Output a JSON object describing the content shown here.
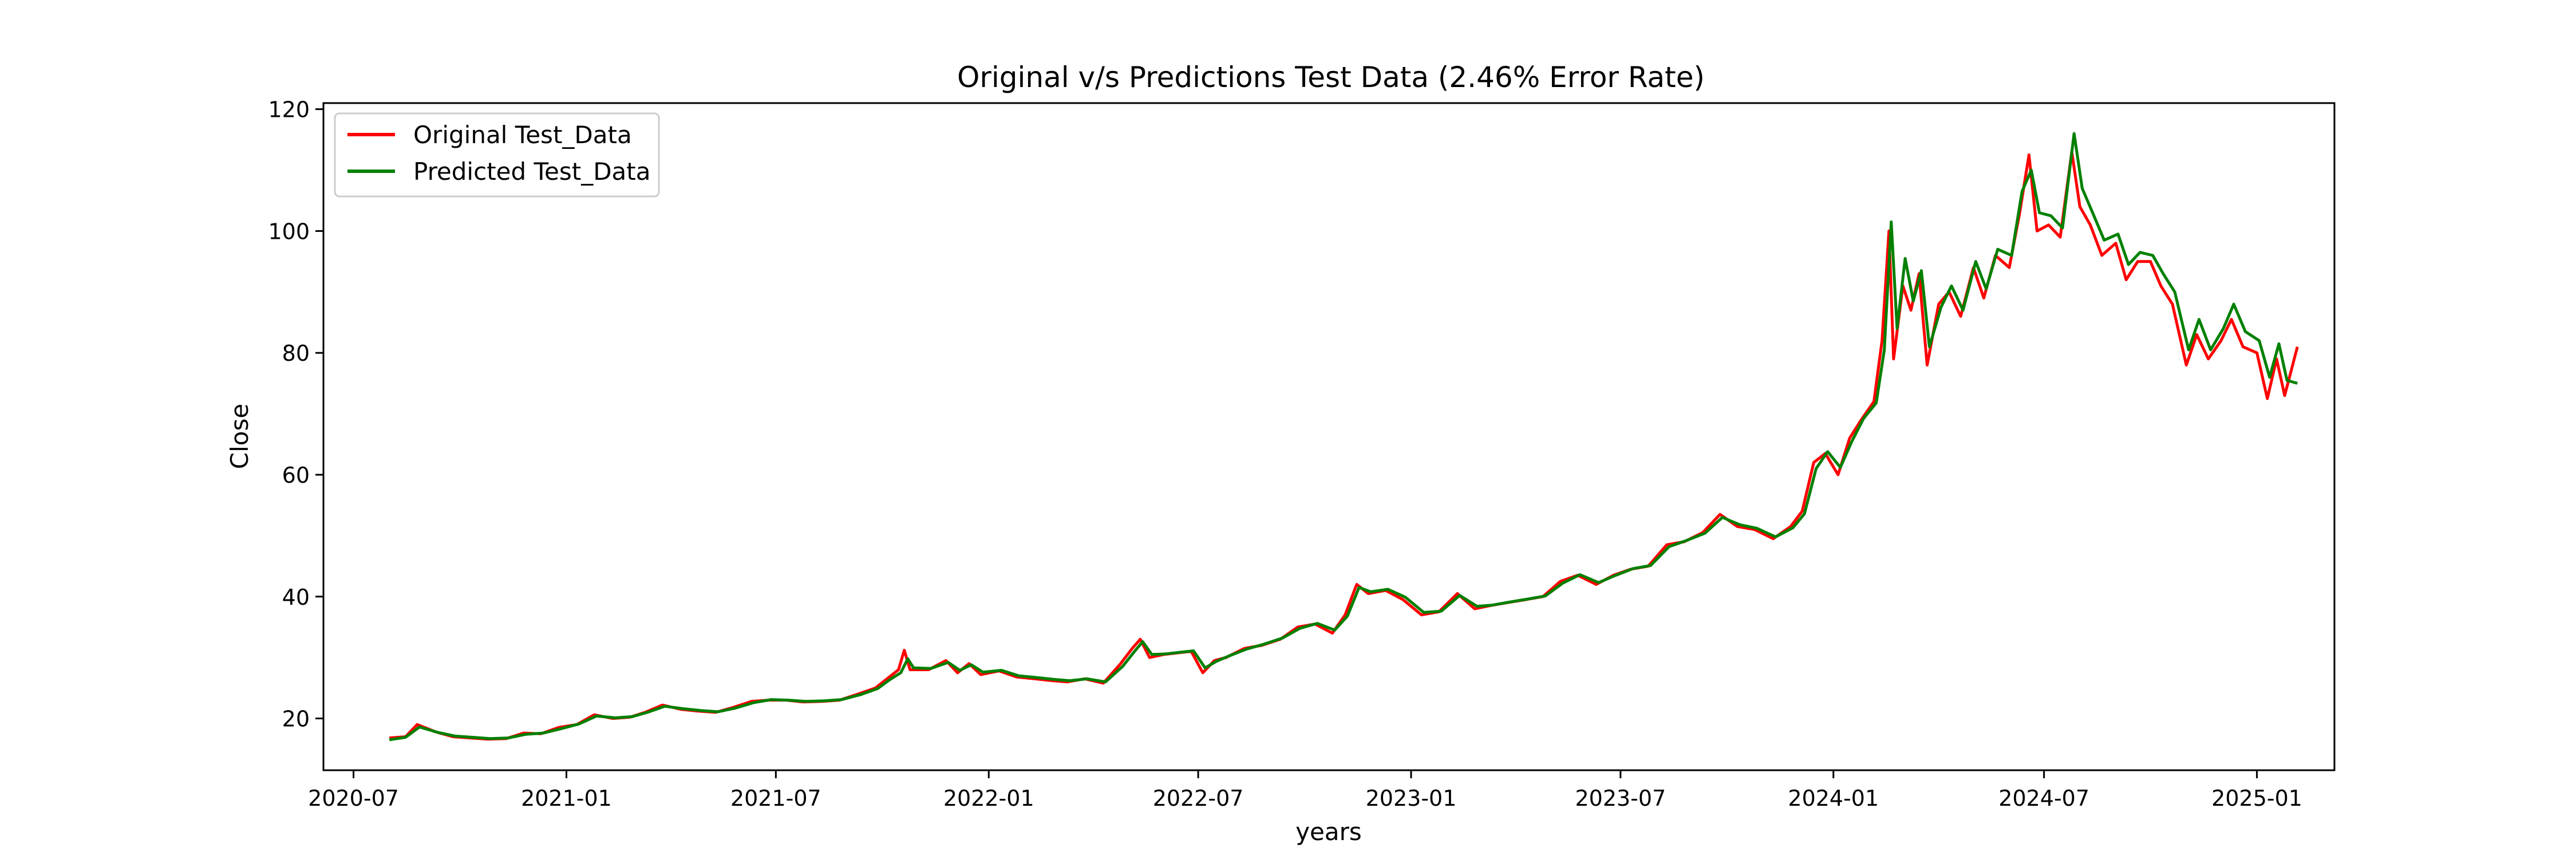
{
  "chart_data": {
    "type": "line",
    "title": "Original v/s Predictions Test Data (2.46% Error Rate)",
    "xlabel": "years",
    "ylabel": "Close",
    "xlim": [
      "2020-06-05",
      "2025-03-09"
    ],
    "ylim": [
      11.5,
      121
    ],
    "x_ticks": [
      "2020-07",
      "2021-01",
      "2021-07",
      "2022-01",
      "2022-07",
      "2023-01",
      "2023-07",
      "2024-01",
      "2024-07",
      "2025-01"
    ],
    "y_ticks": [
      20,
      40,
      60,
      80,
      100,
      120
    ],
    "grid": false,
    "legend_position": "upper-left",
    "series": [
      {
        "name": "Original Test_Data",
        "color": "#ff0000",
        "points": [
          [
            "2020-08-01",
            16.8
          ],
          [
            "2020-08-15",
            17.0
          ],
          [
            "2020-08-25",
            19.0
          ],
          [
            "2020-09-10",
            17.8
          ],
          [
            "2020-09-25",
            17.0
          ],
          [
            "2020-10-10",
            16.8
          ],
          [
            "2020-10-25",
            16.6
          ],
          [
            "2020-11-10",
            16.7
          ],
          [
            "2020-11-25",
            17.6
          ],
          [
            "2020-12-10",
            17.5
          ],
          [
            "2020-12-25",
            18.5
          ],
          [
            "2021-01-10",
            19.0
          ],
          [
            "2021-01-25",
            20.6
          ],
          [
            "2021-02-10",
            20.0
          ],
          [
            "2021-02-25",
            20.2
          ],
          [
            "2021-03-10",
            21.0
          ],
          [
            "2021-03-25",
            22.2
          ],
          [
            "2021-04-10",
            21.5
          ],
          [
            "2021-04-25",
            21.2
          ],
          [
            "2021-05-10",
            21.0
          ],
          [
            "2021-05-25",
            21.8
          ],
          [
            "2021-06-10",
            22.8
          ],
          [
            "2021-06-25",
            23.0
          ],
          [
            "2021-07-10",
            23.0
          ],
          [
            "2021-07-25",
            22.7
          ],
          [
            "2021-08-10",
            22.8
          ],
          [
            "2021-08-25",
            23.0
          ],
          [
            "2021-09-10",
            24.0
          ],
          [
            "2021-09-25",
            25.0
          ],
          [
            "2021-10-05",
            26.5
          ],
          [
            "2021-10-15",
            28.0
          ],
          [
            "2021-10-20",
            31.2
          ],
          [
            "2021-10-25",
            28.0
          ],
          [
            "2021-11-10",
            28.0
          ],
          [
            "2021-11-25",
            29.5
          ],
          [
            "2021-12-05",
            27.5
          ],
          [
            "2021-12-15",
            29.0
          ],
          [
            "2021-12-25",
            27.2
          ],
          [
            "2022-01-10",
            27.8
          ],
          [
            "2022-01-25",
            26.8
          ],
          [
            "2022-02-10",
            26.5
          ],
          [
            "2022-02-25",
            26.2
          ],
          [
            "2022-03-10",
            26.0
          ],
          [
            "2022-03-25",
            26.5
          ],
          [
            "2022-04-10",
            25.8
          ],
          [
            "2022-04-25",
            29.0
          ],
          [
            "2022-05-05",
            31.5
          ],
          [
            "2022-05-12",
            33.0
          ],
          [
            "2022-05-20",
            30.0
          ],
          [
            "2022-06-01",
            30.5
          ],
          [
            "2022-06-15",
            30.8
          ],
          [
            "2022-06-25",
            31.0
          ],
          [
            "2022-07-05",
            27.5
          ],
          [
            "2022-07-15",
            29.5
          ],
          [
            "2022-07-25",
            30.0
          ],
          [
            "2022-08-10",
            31.5
          ],
          [
            "2022-08-25",
            32.0
          ],
          [
            "2022-09-10",
            33.0
          ],
          [
            "2022-09-25",
            35.0
          ],
          [
            "2022-10-10",
            35.5
          ],
          [
            "2022-10-25",
            34.0
          ],
          [
            "2022-11-05",
            37.0
          ],
          [
            "2022-11-15",
            42.0
          ],
          [
            "2022-11-25",
            40.5
          ],
          [
            "2022-12-10",
            41.0
          ],
          [
            "2022-12-25",
            39.5
          ],
          [
            "2023-01-10",
            37.0
          ],
          [
            "2023-01-25",
            37.5
          ],
          [
            "2023-02-10",
            40.5
          ],
          [
            "2023-02-25",
            38.0
          ],
          [
            "2023-03-10",
            38.5
          ],
          [
            "2023-03-25",
            39.0
          ],
          [
            "2023-04-10",
            39.5
          ],
          [
            "2023-04-25",
            40.0
          ],
          [
            "2023-05-10",
            42.5
          ],
          [
            "2023-05-25",
            43.5
          ],
          [
            "2023-06-10",
            42.0
          ],
          [
            "2023-06-25",
            43.5
          ],
          [
            "2023-07-10",
            44.5
          ],
          [
            "2023-07-25",
            45.0
          ],
          [
            "2023-08-10",
            48.5
          ],
          [
            "2023-08-25",
            49.0
          ],
          [
            "2023-09-10",
            50.5
          ],
          [
            "2023-09-25",
            53.5
          ],
          [
            "2023-10-10",
            51.5
          ],
          [
            "2023-10-25",
            51.0
          ],
          [
            "2023-11-10",
            49.5
          ],
          [
            "2023-11-25",
            51.5
          ],
          [
            "2023-12-05",
            54.0
          ],
          [
            "2023-12-15",
            62.0
          ],
          [
            "2023-12-25",
            63.5
          ],
          [
            "2024-01-05",
            60.0
          ],
          [
            "2024-01-15",
            66.0
          ],
          [
            "2024-01-25",
            69.0
          ],
          [
            "2024-02-05",
            72.0
          ],
          [
            "2024-02-12",
            82.0
          ],
          [
            "2024-02-18",
            100.0
          ],
          [
            "2024-02-22",
            79.0
          ],
          [
            "2024-03-01",
            91.0
          ],
          [
            "2024-03-08",
            87.0
          ],
          [
            "2024-03-15",
            93.0
          ],
          [
            "2024-03-22",
            78.0
          ],
          [
            "2024-04-01",
            88.0
          ],
          [
            "2024-04-10",
            90.0
          ],
          [
            "2024-04-20",
            86.0
          ],
          [
            "2024-05-01",
            94.0
          ],
          [
            "2024-05-10",
            89.0
          ],
          [
            "2024-05-20",
            96.0
          ],
          [
            "2024-06-01",
            94.0
          ],
          [
            "2024-06-10",
            103.0
          ],
          [
            "2024-06-18",
            112.5
          ],
          [
            "2024-06-25",
            100.0
          ],
          [
            "2024-07-05",
            101.0
          ],
          [
            "2024-07-15",
            99.0
          ],
          [
            "2024-07-25",
            113.0
          ],
          [
            "2024-08-01",
            104.0
          ],
          [
            "2024-08-10",
            101.0
          ],
          [
            "2024-08-20",
            96.0
          ],
          [
            "2024-09-01",
            98.0
          ],
          [
            "2024-09-10",
            92.0
          ],
          [
            "2024-09-20",
            95.0
          ],
          [
            "2024-10-01",
            95.0
          ],
          [
            "2024-10-10",
            91.0
          ],
          [
            "2024-10-20",
            88.0
          ],
          [
            "2024-11-01",
            78.0
          ],
          [
            "2024-11-10",
            83.0
          ],
          [
            "2024-11-20",
            79.0
          ],
          [
            "2024-12-01",
            82.0
          ],
          [
            "2024-12-10",
            85.5
          ],
          [
            "2024-12-20",
            81.0
          ],
          [
            "2025-01-01",
            80.0
          ],
          [
            "2025-01-10",
            72.5
          ],
          [
            "2025-01-18",
            79.0
          ],
          [
            "2025-01-25",
            73.0
          ],
          [
            "2025-02-05",
            81.0
          ]
        ]
      },
      {
        "name": "Predicted Test_Data",
        "color": "#008000",
        "points": [
          [
            "2020-08-01",
            16.5
          ],
          [
            "2020-08-15",
            16.9
          ],
          [
            "2020-08-27",
            18.6
          ],
          [
            "2020-09-12",
            17.7
          ],
          [
            "2020-09-27",
            17.1
          ],
          [
            "2020-10-12",
            16.9
          ],
          [
            "2020-10-27",
            16.7
          ],
          [
            "2020-11-12",
            16.8
          ],
          [
            "2020-11-27",
            17.4
          ],
          [
            "2020-12-12",
            17.6
          ],
          [
            "2020-12-27",
            18.3
          ],
          [
            "2021-01-12",
            19.1
          ],
          [
            "2021-01-27",
            20.4
          ],
          [
            "2021-02-12",
            20.1
          ],
          [
            "2021-02-27",
            20.3
          ],
          [
            "2021-03-12",
            21.0
          ],
          [
            "2021-03-27",
            22.0
          ],
          [
            "2021-04-12",
            21.6
          ],
          [
            "2021-04-27",
            21.3
          ],
          [
            "2021-05-12",
            21.1
          ],
          [
            "2021-05-27",
            21.7
          ],
          [
            "2021-06-12",
            22.6
          ],
          [
            "2021-06-27",
            23.1
          ],
          [
            "2021-07-12",
            23.0
          ],
          [
            "2021-07-27",
            22.8
          ],
          [
            "2021-08-12",
            22.9
          ],
          [
            "2021-08-27",
            23.1
          ],
          [
            "2021-09-12",
            23.9
          ],
          [
            "2021-09-27",
            24.9
          ],
          [
            "2021-10-07",
            26.3
          ],
          [
            "2021-10-17",
            27.5
          ],
          [
            "2021-10-23",
            29.8
          ],
          [
            "2021-10-28",
            28.3
          ],
          [
            "2021-11-12",
            28.2
          ],
          [
            "2021-11-27",
            29.2
          ],
          [
            "2021-12-07",
            27.9
          ],
          [
            "2021-12-17",
            28.8
          ],
          [
            "2021-12-27",
            27.6
          ],
          [
            "2022-01-12",
            27.9
          ],
          [
            "2022-01-27",
            27.0
          ],
          [
            "2022-02-12",
            26.7
          ],
          [
            "2022-02-27",
            26.4
          ],
          [
            "2022-03-12",
            26.2
          ],
          [
            "2022-03-27",
            26.5
          ],
          [
            "2022-04-12",
            26.0
          ],
          [
            "2022-04-27",
            28.6
          ],
          [
            "2022-05-07",
            31.0
          ],
          [
            "2022-05-14",
            32.6
          ],
          [
            "2022-05-22",
            30.5
          ],
          [
            "2022-06-03",
            30.6
          ],
          [
            "2022-06-17",
            30.9
          ],
          [
            "2022-06-27",
            31.1
          ],
          [
            "2022-07-07",
            28.3
          ],
          [
            "2022-07-17",
            29.4
          ],
          [
            "2022-07-27",
            30.2
          ],
          [
            "2022-08-12",
            31.4
          ],
          [
            "2022-08-27",
            32.2
          ],
          [
            "2022-09-12",
            33.2
          ],
          [
            "2022-09-27",
            34.8
          ],
          [
            "2022-10-12",
            35.6
          ],
          [
            "2022-10-27",
            34.5
          ],
          [
            "2022-11-07",
            36.8
          ],
          [
            "2022-11-17",
            41.5
          ],
          [
            "2022-11-27",
            40.8
          ],
          [
            "2022-12-12",
            41.2
          ],
          [
            "2022-12-27",
            39.9
          ],
          [
            "2023-01-12",
            37.4
          ],
          [
            "2023-01-27",
            37.6
          ],
          [
            "2023-02-12",
            40.2
          ],
          [
            "2023-02-27",
            38.4
          ],
          [
            "2023-03-12",
            38.6
          ],
          [
            "2023-03-27",
            39.1
          ],
          [
            "2023-04-12",
            39.6
          ],
          [
            "2023-04-27",
            40.1
          ],
          [
            "2023-05-12",
            42.2
          ],
          [
            "2023-05-27",
            43.6
          ],
          [
            "2023-06-12",
            42.3
          ],
          [
            "2023-06-27",
            43.5
          ],
          [
            "2023-07-12",
            44.6
          ],
          [
            "2023-07-27",
            45.1
          ],
          [
            "2023-08-12",
            48.2
          ],
          [
            "2023-08-27",
            49.2
          ],
          [
            "2023-09-12",
            50.4
          ],
          [
            "2023-09-27",
            53.0
          ],
          [
            "2023-10-12",
            51.8
          ],
          [
            "2023-10-27",
            51.2
          ],
          [
            "2023-11-12",
            49.8
          ],
          [
            "2023-11-27",
            51.3
          ],
          [
            "2023-12-07",
            53.6
          ],
          [
            "2023-12-17",
            61.0
          ],
          [
            "2023-12-27",
            63.8
          ],
          [
            "2024-01-07",
            61.2
          ],
          [
            "2024-01-17",
            65.5
          ],
          [
            "2024-01-27",
            69.2
          ],
          [
            "2024-02-07",
            71.8
          ],
          [
            "2024-02-14",
            80.5
          ],
          [
            "2024-02-20",
            101.5
          ],
          [
            "2024-02-25",
            84.0
          ],
          [
            "2024-03-03",
            95.5
          ],
          [
            "2024-03-10",
            88.5
          ],
          [
            "2024-03-17",
            93.5
          ],
          [
            "2024-03-24",
            81.0
          ],
          [
            "2024-04-03",
            87.5
          ],
          [
            "2024-04-12",
            91.0
          ],
          [
            "2024-04-22",
            87.0
          ],
          [
            "2024-05-03",
            95.0
          ],
          [
            "2024-05-12",
            90.5
          ],
          [
            "2024-05-22",
            97.0
          ],
          [
            "2024-06-03",
            96.0
          ],
          [
            "2024-06-12",
            106.5
          ],
          [
            "2024-06-20",
            110.0
          ],
          [
            "2024-06-27",
            103.0
          ],
          [
            "2024-07-07",
            102.5
          ],
          [
            "2024-07-17",
            100.5
          ],
          [
            "2024-07-27",
            116.0
          ],
          [
            "2024-08-03",
            107.0
          ],
          [
            "2024-08-12",
            103.0
          ],
          [
            "2024-08-22",
            98.5
          ],
          [
            "2024-09-03",
            99.5
          ],
          [
            "2024-09-12",
            94.5
          ],
          [
            "2024-09-22",
            96.5
          ],
          [
            "2024-10-03",
            96.0
          ],
          [
            "2024-10-12",
            93.0
          ],
          [
            "2024-10-22",
            90.0
          ],
          [
            "2024-11-03",
            80.5
          ],
          [
            "2024-11-12",
            85.5
          ],
          [
            "2024-11-22",
            80.5
          ],
          [
            "2024-12-03",
            84.0
          ],
          [
            "2024-12-12",
            88.0
          ],
          [
            "2024-12-22",
            83.5
          ],
          [
            "2025-01-03",
            82.0
          ],
          [
            "2025-01-12",
            76.0
          ],
          [
            "2025-01-20",
            81.5
          ],
          [
            "2025-01-27",
            75.5
          ],
          [
            "2025-02-05",
            75.0
          ]
        ]
      }
    ]
  }
}
